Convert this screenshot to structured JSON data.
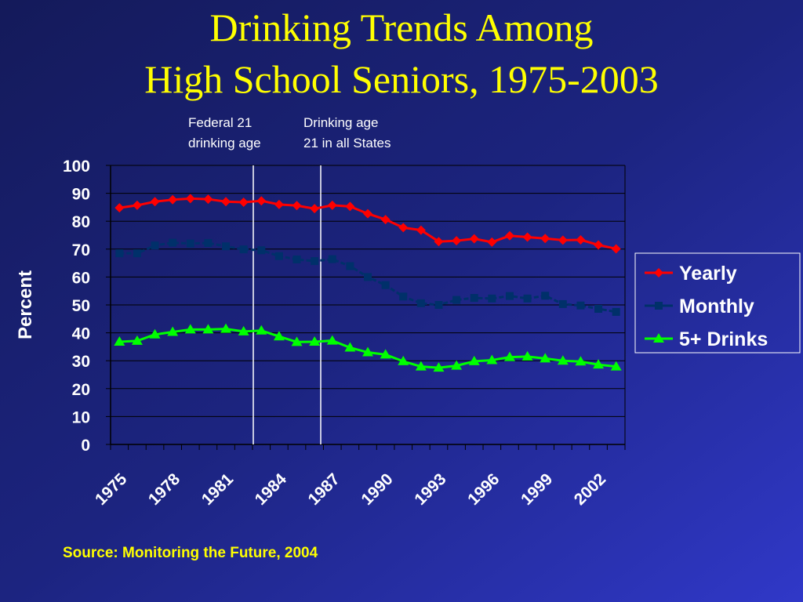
{
  "chart_data": {
    "type": "line",
    "title_lines": [
      "Drinking Trends Among",
      "High School Seniors, 1975-2003"
    ],
    "y_label": "Percent",
    "annotations": [
      [
        "Federal 21",
        "drinking age"
      ],
      [
        "Drinking age",
        "21 in all States"
      ]
    ],
    "source": "Source:  Monitoring the Future, 2004",
    "categories": [
      "1975",
      null,
      null,
      "1978",
      null,
      null,
      "1981",
      null,
      null,
      "1984",
      null,
      null,
      "1987",
      null,
      null,
      "1990",
      null,
      null,
      "1993",
      null,
      null,
      "1996",
      null,
      null,
      "1999",
      null,
      null,
      "2002",
      null
    ],
    "series": [
      {
        "name": "Yearly",
        "color": "#ff0000",
        "marker": "diamond",
        "values": [
          84.8,
          85.7,
          87.0,
          87.7,
          88.1,
          87.9,
          87.0,
          86.8,
          87.3,
          86.0,
          85.6,
          84.5,
          85.7,
          85.3,
          82.7,
          80.6,
          77.7,
          76.8,
          72.7,
          73.0,
          73.7,
          72.5,
          74.8,
          74.3,
          73.8,
          73.2,
          73.3,
          71.5,
          70.1
        ]
      },
      {
        "name": "Monthly",
        "color": "#00306a",
        "marker": "square",
        "values": [
          68.5,
          68.5,
          71.3,
          72.3,
          72.0,
          72.2,
          71.0,
          69.9,
          69.6,
          67.5,
          66.3,
          65.7,
          66.4,
          63.9,
          60.0,
          57.1,
          53.0,
          50.6,
          50.0,
          51.8,
          52.5,
          52.3,
          53.2,
          52.3,
          53.3,
          50.3,
          49.8,
          48.6,
          47.5
        ]
      },
      {
        "name": "5+ Drinks",
        "color": "#00ff00",
        "marker": "triangle",
        "values": [
          36.8,
          37.1,
          39.4,
          40.3,
          41.2,
          41.2,
          41.4,
          40.5,
          40.8,
          38.7,
          36.7,
          36.8,
          37.2,
          34.7,
          33.0,
          32.2,
          29.8,
          27.9,
          27.5,
          28.2,
          29.8,
          30.2,
          31.3,
          31.5,
          30.8,
          30.0,
          29.7,
          28.6,
          27.9
        ]
      }
    ],
    "ylim": [
      0,
      100
    ],
    "yticks": [
      0,
      10,
      20,
      30,
      40,
      50,
      60,
      70,
      80,
      90,
      100
    ],
    "grid": true,
    "legend": "right"
  }
}
